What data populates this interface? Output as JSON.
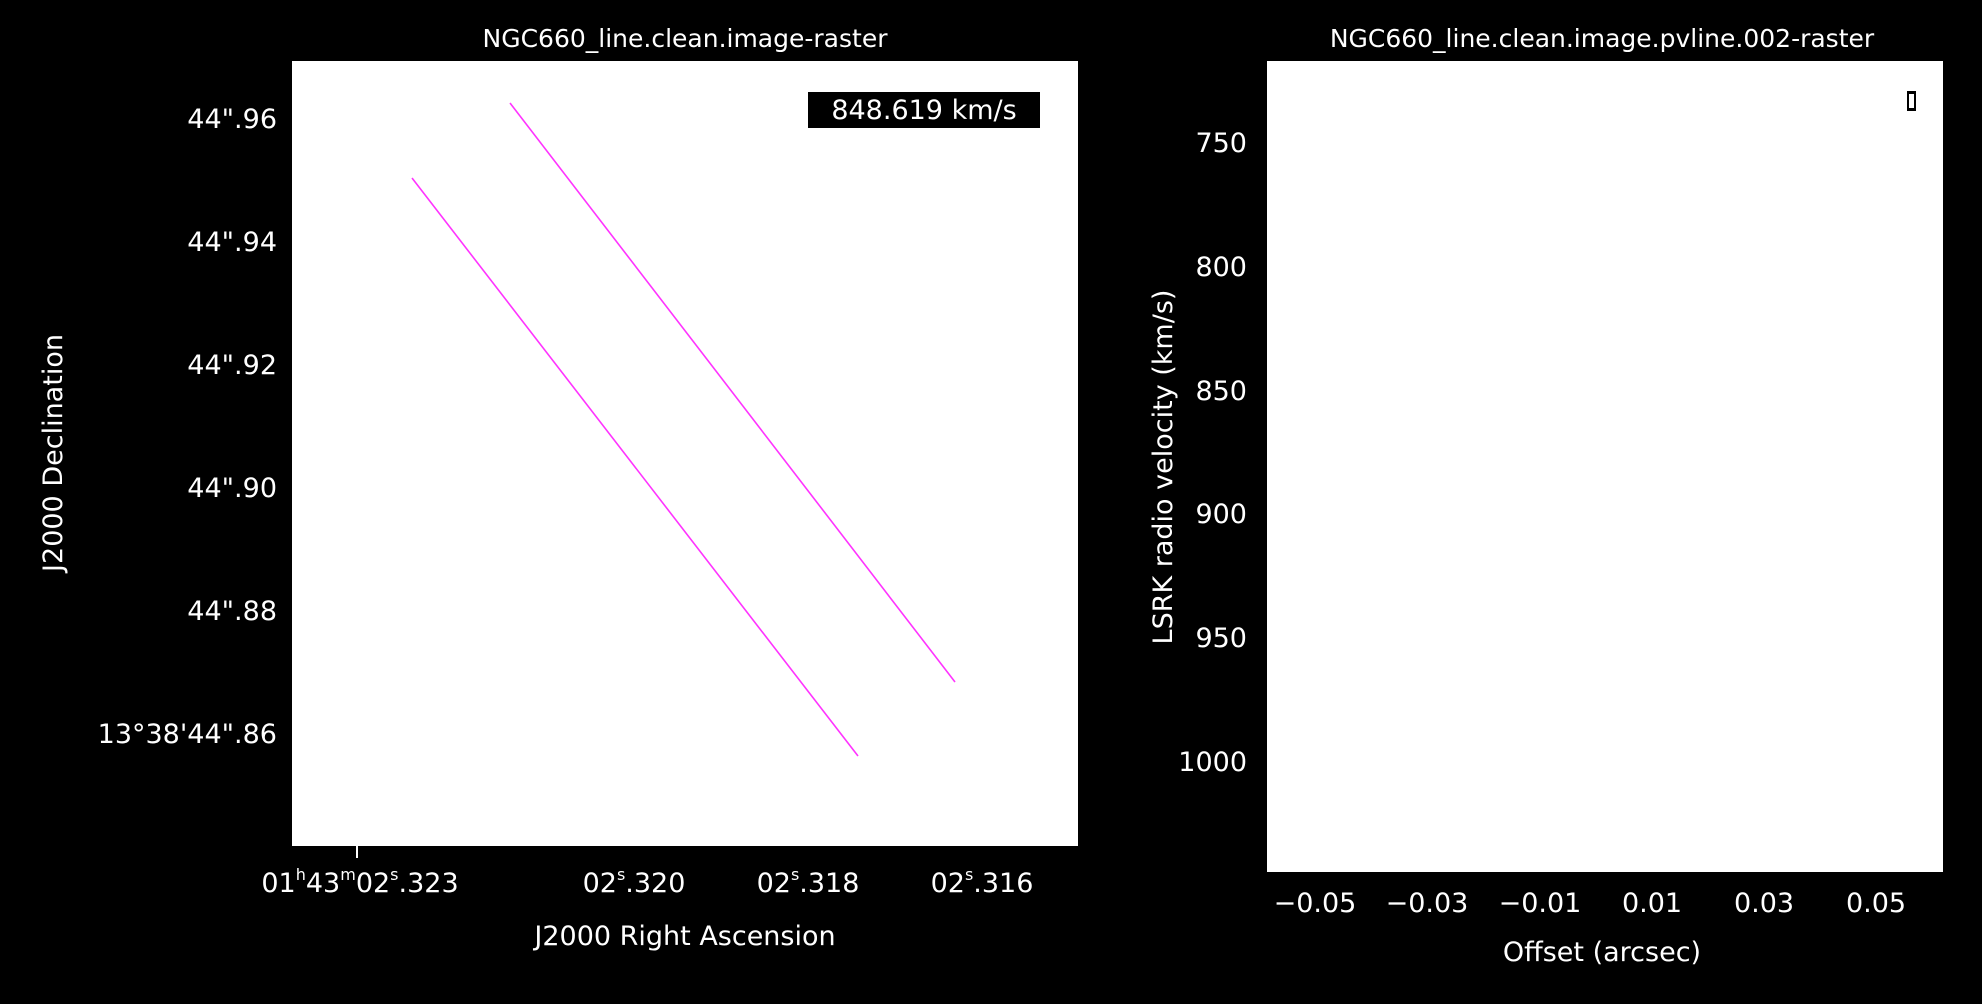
{
  "left_panel": {
    "title": "NGC660_line.clean.image-raster",
    "velocity_label": "848.619 km/s",
    "x_axis_label": "J2000 Right Ascension",
    "y_axis_label": "J2000 Declination",
    "x_ticks": [
      "01h43m02s.323",
      "02s.320",
      "02s.318",
      "02s.316"
    ],
    "y_ticks": [
      "44\".96",
      "44\".94",
      "44\".92",
      "44\".90",
      "44\".88",
      "13°38'44\".86"
    ],
    "pv_line_color": "#ff33ff",
    "colors": {
      "level1": "#fff176",
      "level2": "#ffc21a",
      "level3": "#ff8a00",
      "level4": "#ee2d2d",
      "level5": "#a12cf0",
      "level6": "#3f4dff",
      "level7": "#1ab6ff",
      "level8": "#35e35f",
      "level9": "#128a1f",
      "level10": "#000000"
    }
  },
  "right_panel": {
    "title": "NGC660_line.clean.image.pvline.002-raster",
    "x_axis_label": "Offset (arcsec)",
    "y_axis_label": "LSRK radio velocity  (km/s)",
    "x_ticks": [
      "−0.05",
      "−0.03",
      "−0.01",
      "0.01",
      "0.03",
      "0.05"
    ],
    "y_ticks": [
      "750",
      "800",
      "850",
      "900",
      "950",
      "1000"
    ],
    "marker_icon": "beam-marker"
  }
}
